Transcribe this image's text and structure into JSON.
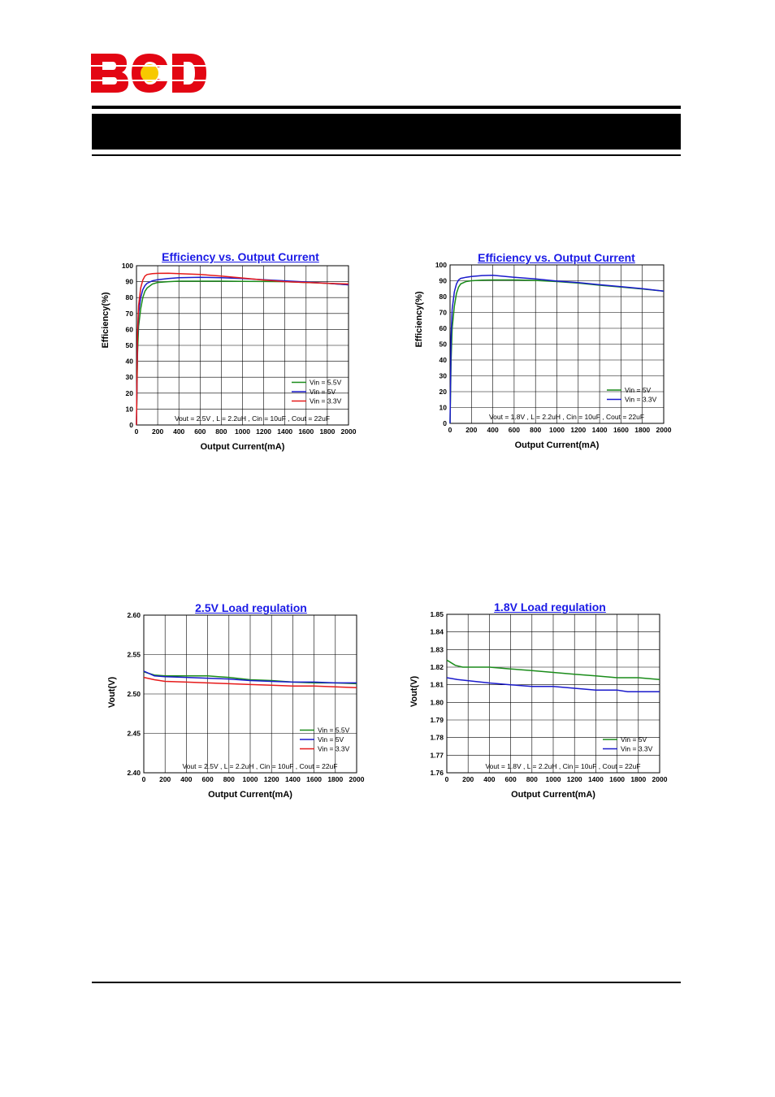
{
  "logo": {
    "text": "BCD",
    "colors": {
      "letters": "#e30613",
      "dot": "#f7c900"
    }
  },
  "header": {
    "band_color": "#000000"
  },
  "chart_data": [
    {
      "type": "line",
      "title": "Efficiency vs. Output Current",
      "xlabel": "Output Current(mA)",
      "ylabel": "Efficiency(%)",
      "xlim": [
        0,
        2000
      ],
      "ylim": [
        0,
        100
      ],
      "x_ticks": [
        "0",
        "200",
        "400",
        "600",
        "800",
        "1000",
        "1200",
        "1400",
        "1600",
        "1800",
        "2000"
      ],
      "y_ticks": [
        "0",
        "10",
        "20",
        "30",
        "40",
        "50",
        "60",
        "70",
        "80",
        "90",
        "100"
      ],
      "grid": true,
      "legend_position": "bottom-right",
      "annotation": "Vout = 2.5V , L = 2.2uH , Cin = 10uF , Cout = 22uF",
      "series": [
        {
          "name": "Vin = 5.5V",
          "color": "#1a8c1a",
          "points": [
            [
              0,
              0
            ],
            [
              10,
              45
            ],
            [
              20,
              62
            ],
            [
              40,
              73
            ],
            [
              60,
              80
            ],
            [
              80,
              84
            ],
            [
              100,
              86
            ],
            [
              150,
              88.5
            ],
            [
              200,
              89.5
            ],
            [
              300,
              90
            ],
            [
              400,
              90.3
            ],
            [
              600,
              90.3
            ],
            [
              800,
              90.3
            ],
            [
              1000,
              90.2
            ],
            [
              1200,
              90.1
            ],
            [
              1400,
              90
            ],
            [
              1600,
              89.5
            ],
            [
              1800,
              89
            ],
            [
              2000,
              88
            ]
          ]
        },
        {
          "name": "Vin = 5V",
          "color": "#1a1acc",
          "points": [
            [
              0,
              0
            ],
            [
              10,
              55
            ],
            [
              20,
              70
            ],
            [
              40,
              80
            ],
            [
              60,
              85
            ],
            [
              80,
              87.5
            ],
            [
              100,
              89
            ],
            [
              150,
              90.5
            ],
            [
              200,
              91.2
            ],
            [
              300,
              92
            ],
            [
              400,
              92.5
            ],
            [
              600,
              92.7
            ],
            [
              800,
              92.5
            ],
            [
              1000,
              92
            ],
            [
              1200,
              91.2
            ],
            [
              1400,
              90.5
            ],
            [
              1600,
              89.8
            ],
            [
              1800,
              89
            ],
            [
              2000,
              88
            ]
          ]
        },
        {
          "name": "Vin = 3.3V",
          "color": "#e61a1a",
          "points": [
            [
              0,
              0
            ],
            [
              10,
              58
            ],
            [
              20,
              75
            ],
            [
              40,
              86
            ],
            [
              60,
              91
            ],
            [
              80,
              93.5
            ],
            [
              100,
              94.5
            ],
            [
              150,
              95
            ],
            [
              200,
              95.2
            ],
            [
              300,
              95.3
            ],
            [
              400,
              95
            ],
            [
              600,
              94.5
            ],
            [
              800,
              93.5
            ],
            [
              1000,
              92.3
            ],
            [
              1200,
              91
            ],
            [
              1400,
              90
            ],
            [
              1600,
              89.5
            ],
            [
              1800,
              89
            ],
            [
              2000,
              88.5
            ]
          ]
        }
      ]
    },
    {
      "type": "line",
      "title": "Efficiency vs. Output Current",
      "xlabel": "Output Current(mA)",
      "ylabel": "Efficiency(%)",
      "xlim": [
        0,
        2000
      ],
      "ylim": [
        0,
        100
      ],
      "x_ticks": [
        "0",
        "200",
        "400",
        "600",
        "800",
        "1000",
        "1200",
        "1400",
        "1600",
        "1800",
        "2000"
      ],
      "y_ticks": [
        "0",
        "10",
        "20",
        "30",
        "40",
        "50",
        "60",
        "70",
        "80",
        "90",
        "100"
      ],
      "grid": true,
      "legend_position": "bottom-right",
      "annotation": "Vout = 1.8V , L = 2.2uH , Cin = 10uF , Cout = 22uF",
      "series": [
        {
          "name": "Vin = 5V",
          "color": "#1a8c1a",
          "points": [
            [
              0,
              0
            ],
            [
              10,
              40
            ],
            [
              20,
              60
            ],
            [
              40,
              74
            ],
            [
              60,
              82
            ],
            [
              80,
              86
            ],
            [
              100,
              88
            ],
            [
              150,
              89.5
            ],
            [
              200,
              90
            ],
            [
              300,
              90.4
            ],
            [
              400,
              90.5
            ],
            [
              600,
              90.5
            ],
            [
              800,
              90.2
            ],
            [
              1000,
              89.5
            ],
            [
              1200,
              88.5
            ],
            [
              1400,
              87.2
            ],
            [
              1600,
              86
            ],
            [
              1800,
              84.8
            ],
            [
              2000,
              83.5
            ]
          ]
        },
        {
          "name": "Vin = 3.3V",
          "color": "#1a1acc",
          "points": [
            [
              0,
              0
            ],
            [
              10,
              55
            ],
            [
              20,
              72
            ],
            [
              40,
              83
            ],
            [
              60,
              88
            ],
            [
              80,
              90.5
            ],
            [
              100,
              91.5
            ],
            [
              150,
              92.2
            ],
            [
              200,
              92.7
            ],
            [
              300,
              93.3
            ],
            [
              400,
              93.5
            ],
            [
              500,
              92.8
            ],
            [
              600,
              92.2
            ],
            [
              800,
              91.2
            ],
            [
              1000,
              89.8
            ],
            [
              1200,
              88.8
            ],
            [
              1400,
              87.5
            ],
            [
              1600,
              86.3
            ],
            [
              1800,
              85
            ],
            [
              2000,
              83.5
            ]
          ]
        }
      ]
    },
    {
      "type": "line",
      "title": "2.5V Load regulation",
      "xlabel": "Output Current(mA)",
      "ylabel": "Vout(V)",
      "xlim": [
        0,
        2000
      ],
      "ylim": [
        2.4,
        2.6
      ],
      "x_ticks": [
        "0",
        "200",
        "400",
        "600",
        "800",
        "1000",
        "1200",
        "1400",
        "1600",
        "1800",
        "2000"
      ],
      "y_ticks": [
        "2.40",
        "2.45",
        "2.50",
        "2.55",
        "2.60"
      ],
      "grid": true,
      "legend_position": "bottom-right",
      "annotation": "Vout = 2.5V , L = 2.2uH , Cin = 10uF , Cout = 22uF",
      "series": [
        {
          "name": "Vin = 5.5V",
          "color": "#1a8c1a",
          "points": [
            [
              0,
              2.528
            ],
            [
              100,
              2.524
            ],
            [
              200,
              2.523
            ],
            [
              400,
              2.523
            ],
            [
              600,
              2.523
            ],
            [
              700,
              2.522
            ],
            [
              800,
              2.521
            ],
            [
              1000,
              2.518
            ],
            [
              1200,
              2.517
            ],
            [
              1400,
              2.515
            ],
            [
              1600,
              2.514
            ],
            [
              1800,
              2.514
            ],
            [
              2000,
              2.513
            ]
          ]
        },
        {
          "name": "Vin = 5V",
          "color": "#1a1acc",
          "points": [
            [
              0,
              2.529
            ],
            [
              100,
              2.523
            ],
            [
              200,
              2.522
            ],
            [
              400,
              2.521
            ],
            [
              600,
              2.52
            ],
            [
              800,
              2.519
            ],
            [
              1000,
              2.517
            ],
            [
              1200,
              2.516
            ],
            [
              1400,
              2.515
            ],
            [
              1600,
              2.515
            ],
            [
              1800,
              2.514
            ],
            [
              2000,
              2.514
            ]
          ]
        },
        {
          "name": "Vin = 3.3V",
          "color": "#e61a1a",
          "points": [
            [
              0,
              2.521
            ],
            [
              100,
              2.518
            ],
            [
              200,
              2.516
            ],
            [
              400,
              2.515
            ],
            [
              600,
              2.514
            ],
            [
              800,
              2.513
            ],
            [
              1000,
              2.512
            ],
            [
              1200,
              2.511
            ],
            [
              1400,
              2.51
            ],
            [
              1600,
              2.51
            ],
            [
              1800,
              2.509
            ],
            [
              2000,
              2.508
            ]
          ]
        }
      ]
    },
    {
      "type": "line",
      "title": "1.8V Load regulation",
      "xlabel": "Output Current(mA)",
      "ylabel": "Vout(V)",
      "xlim": [
        0,
        2000
      ],
      "ylim": [
        1.76,
        1.85
      ],
      "x_ticks": [
        "0",
        "200",
        "400",
        "600",
        "800",
        "1000",
        "1200",
        "1400",
        "1600",
        "1800",
        "2000"
      ],
      "y_ticks": [
        "1.76",
        "1.77",
        "1.78",
        "1.79",
        "1.80",
        "1.81",
        "1.82",
        "1.83",
        "1.84",
        "1.85"
      ],
      "grid": true,
      "legend_position": "bottom-right",
      "annotation": "Vout = 1.8V , L = 2.2uH , Cin = 10uF , Cout = 22uF",
      "series": [
        {
          "name": "Vin = 5V",
          "color": "#1a8c1a",
          "points": [
            [
              0,
              1.824
            ],
            [
              80,
              1.821
            ],
            [
              150,
              1.82
            ],
            [
              400,
              1.82
            ],
            [
              600,
              1.819
            ],
            [
              800,
              1.818
            ],
            [
              1000,
              1.817
            ],
            [
              1200,
              1.816
            ],
            [
              1400,
              1.815
            ],
            [
              1600,
              1.814
            ],
            [
              1800,
              1.814
            ],
            [
              2000,
              1.813
            ]
          ]
        },
        {
          "name": "Vin = 3.3V",
          "color": "#1a1acc",
          "points": [
            [
              0,
              1.814
            ],
            [
              100,
              1.813
            ],
            [
              400,
              1.811
            ],
            [
              600,
              1.81
            ],
            [
              800,
              1.809
            ],
            [
              1000,
              1.809
            ],
            [
              1200,
              1.808
            ],
            [
              1400,
              1.807
            ],
            [
              1600,
              1.807
            ],
            [
              1700,
              1.806
            ],
            [
              1800,
              1.806
            ],
            [
              2000,
              1.806
            ]
          ]
        }
      ]
    }
  ]
}
